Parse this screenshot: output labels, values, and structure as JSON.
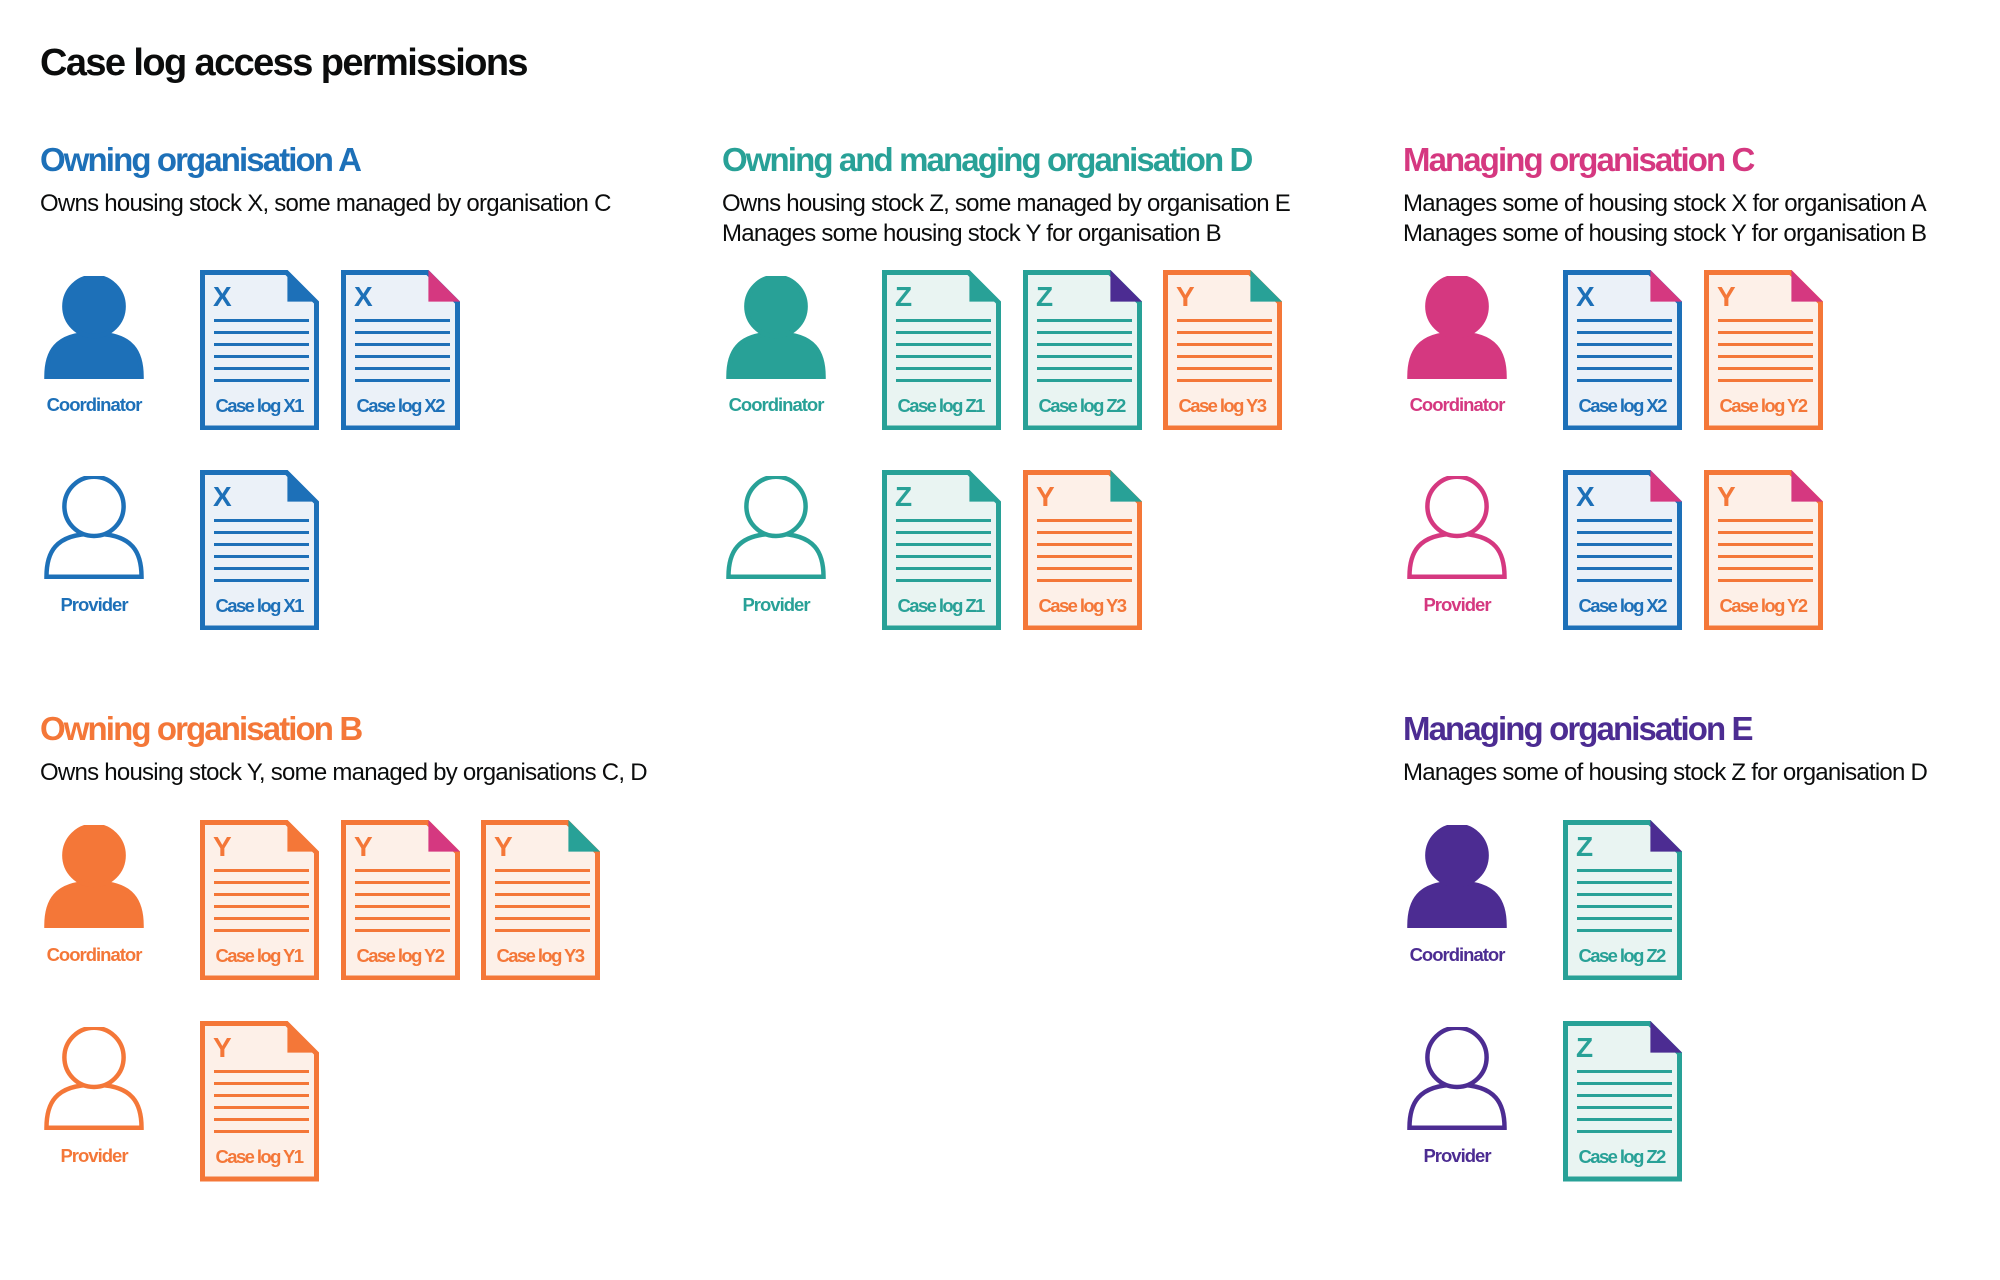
{
  "page": {
    "title": "Case log access permissions"
  },
  "colors": {
    "text": "#0b0c0c",
    "blue": "#1d70b8",
    "blue_light": "#ebf1f8",
    "teal": "#28a197",
    "teal_light": "#e9f4f2",
    "orange": "#f47738",
    "orange_light": "#fdf0e8",
    "pink": "#d53880",
    "purple": "#4c2c92"
  },
  "sections": [
    {
      "id": "owning-organisation-a",
      "heading": "Owning organisation A",
      "color": "blue",
      "description_lines": [
        "Owns housing stock X, some managed by organisation C"
      ],
      "column": 0,
      "row": 0,
      "roles": [
        {
          "label": "Coordinator",
          "person_icon": "person-filled-icon",
          "docs": [
            {
              "letter": "X",
              "label": "Case log X1",
              "doc_color": "blue",
              "fold_color": "blue"
            },
            {
              "letter": "X",
              "label": "Case log X2",
              "doc_color": "blue",
              "fold_color": "pink"
            }
          ]
        },
        {
          "label": "Provider",
          "person_icon": "person-outline-icon",
          "docs": [
            {
              "letter": "X",
              "label": "Case log X1",
              "doc_color": "blue",
              "fold_color": "blue"
            }
          ]
        }
      ]
    },
    {
      "id": "owning-and-managing-organisation-d",
      "heading": "Owning and managing organisation D",
      "color": "teal",
      "description_lines": [
        "Owns housing stock Z, some managed by organisation E",
        "Manages some housing stock Y for organisation B"
      ],
      "column": 1,
      "row": 0,
      "roles": [
        {
          "label": "Coordinator",
          "person_icon": "person-filled-icon",
          "docs": [
            {
              "letter": "Z",
              "label": "Case log Z1",
              "doc_color": "teal",
              "fold_color": "teal"
            },
            {
              "letter": "Z",
              "label": "Case log Z2",
              "doc_color": "teal",
              "fold_color": "purple"
            },
            {
              "letter": "Y",
              "label": "Case log Y3",
              "doc_color": "orange",
              "fold_color": "teal"
            }
          ]
        },
        {
          "label": "Provider",
          "person_icon": "person-outline-icon",
          "docs": [
            {
              "letter": "Z",
              "label": "Case log Z1",
              "doc_color": "teal",
              "fold_color": "teal"
            },
            {
              "letter": "Y",
              "label": "Case log Y3",
              "doc_color": "orange",
              "fold_color": "teal"
            }
          ]
        }
      ]
    },
    {
      "id": "managing-organisation-c",
      "heading": "Managing organisation C",
      "color": "pink",
      "description_lines": [
        "Manages some of housing stock X for organisation A",
        "Manages some of housing stock Y for organisation B"
      ],
      "column": 2,
      "row": 0,
      "roles": [
        {
          "label": "Coordinator",
          "person_icon": "person-filled-icon",
          "docs": [
            {
              "letter": "X",
              "label": "Case log X2",
              "doc_color": "blue",
              "fold_color": "pink"
            },
            {
              "letter": "Y",
              "label": "Case log Y2",
              "doc_color": "orange",
              "fold_color": "pink"
            }
          ]
        },
        {
          "label": "Provider",
          "person_icon": "person-outline-icon",
          "docs": [
            {
              "letter": "X",
              "label": "Case log X2",
              "doc_color": "blue",
              "fold_color": "pink"
            },
            {
              "letter": "Y",
              "label": "Case log Y2",
              "doc_color": "orange",
              "fold_color": "pink"
            }
          ]
        }
      ]
    },
    {
      "id": "owning-organisation-b",
      "heading": "Owning organisation B",
      "color": "orange",
      "description_lines": [
        "Owns housing stock Y, some managed by organisations C, D"
      ],
      "column": 0,
      "row": 1,
      "roles": [
        {
          "label": "Coordinator",
          "person_icon": "person-filled-icon",
          "docs": [
            {
              "letter": "Y",
              "label": "Case log Y1",
              "doc_color": "orange",
              "fold_color": "orange"
            },
            {
              "letter": "Y",
              "label": "Case log Y2",
              "doc_color": "orange",
              "fold_color": "pink"
            },
            {
              "letter": "Y",
              "label": "Case log Y3",
              "doc_color": "orange",
              "fold_color": "teal"
            }
          ]
        },
        {
          "label": "Provider",
          "person_icon": "person-outline-icon",
          "docs": [
            {
              "letter": "Y",
              "label": "Case log Y1",
              "doc_color": "orange",
              "fold_color": "orange"
            }
          ]
        }
      ]
    },
    {
      "id": "managing-organisation-e",
      "heading": "Managing organisation E",
      "color": "purple",
      "description_lines": [
        "Manages some of housing stock Z for organisation D"
      ],
      "column": 2,
      "row": 1,
      "roles": [
        {
          "label": "Coordinator",
          "person_icon": "person-filled-icon",
          "docs": [
            {
              "letter": "Z",
              "label": "Case log Z2",
              "doc_color": "teal",
              "fold_color": "purple"
            }
          ]
        },
        {
          "label": "Provider",
          "person_icon": "person-outline-icon",
          "docs": [
            {
              "letter": "Z",
              "label": "Case log Z2",
              "doc_color": "teal",
              "fold_color": "purple"
            }
          ]
        }
      ]
    }
  ]
}
